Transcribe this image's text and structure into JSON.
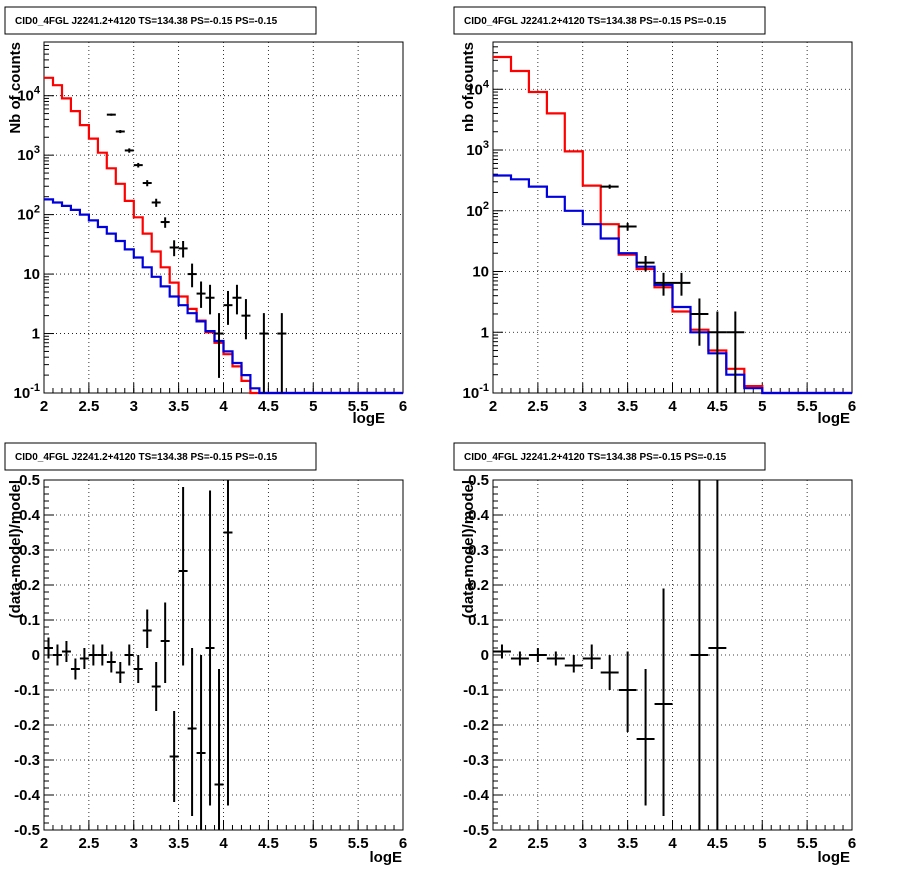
{
  "chart_data": [
    {
      "type": "line",
      "title": "CID0_4FGL J2241.2+4120 TS=134.38 PS=-0.15 PS=-0.15",
      "xlabel": "logE",
      "ylabel": "Nb of counts",
      "xlim": [
        2,
        6
      ],
      "ylim": [
        0.1,
        80000
      ],
      "log_y": true,
      "grid": true,
      "x_ticks": [
        "2",
        "2.5",
        "3",
        "3.5",
        "4",
        "4.5",
        "5",
        "5.5",
        "6"
      ],
      "y_ticks": [
        "10^-1",
        "1",
        "10",
        "10^2",
        "10^3",
        "10^4"
      ],
      "bin_edges_start": 2.0,
      "bin_width": 0.1,
      "series": [
        {
          "kind": "step",
          "color": "#ff0000",
          "values": [
            20000,
            15000,
            9000,
            5500,
            3200,
            1900,
            1100,
            600,
            330,
            170,
            90,
            48,
            24,
            13,
            7.2,
            4.2,
            2.6,
            1.65,
            1.05,
            0.7,
            0.45,
            0.28,
            0.16,
            0.1,
            0.1,
            0.1,
            0.1,
            0.1,
            0.1,
            0.1,
            0.1,
            0.1,
            0.1,
            0.1,
            0.1,
            0.1,
            0.1,
            0.1,
            0.1,
            0.1
          ]
        },
        {
          "kind": "step",
          "color": "#0000dd",
          "values": [
            180,
            160,
            140,
            120,
            100,
            80,
            62,
            48,
            36,
            26,
            19,
            13,
            9,
            6.2,
            4.2,
            3.0,
            2.2,
            1.6,
            1.1,
            0.75,
            0.5,
            0.32,
            0.2,
            0.12,
            0.1,
            0.1,
            0.1,
            0.1,
            0.1,
            0.1,
            0.1,
            0.1,
            0.1,
            0.1,
            0.1,
            0.1,
            0.1,
            0.1,
            0.1,
            0.1
          ]
        },
        {
          "kind": "errorbar",
          "color": "#000000",
          "points": [
            {
              "x": 2.75,
              "y": 4800,
              "lo": 4600,
              "hi": 5000
            },
            {
              "x": 2.85,
              "y": 2500,
              "lo": 2350,
              "hi": 2650
            },
            {
              "x": 2.95,
              "y": 1200,
              "lo": 1100,
              "hi": 1300
            },
            {
              "x": 3.05,
              "y": 680,
              "lo": 620,
              "hi": 740
            },
            {
              "x": 3.15,
              "y": 340,
              "lo": 300,
              "hi": 380
            },
            {
              "x": 3.25,
              "y": 160,
              "lo": 135,
              "hi": 185
            },
            {
              "x": 3.35,
              "y": 75,
              "lo": 60,
              "hi": 90
            },
            {
              "x": 3.45,
              "y": 28,
              "lo": 20,
              "hi": 37
            },
            {
              "x": 3.55,
              "y": 27,
              "lo": 19,
              "hi": 36
            },
            {
              "x": 3.65,
              "y": 10,
              "lo": 6,
              "hi": 15
            },
            {
              "x": 3.75,
              "y": 4.7,
              "lo": 2.7,
              "hi": 7.5
            },
            {
              "x": 3.85,
              "y": 4.0,
              "lo": 2.1,
              "hi": 6.6
            },
            {
              "x": 3.95,
              "y": 1.0,
              "lo": 0.18,
              "hi": 2.2
            },
            {
              "x": 4.05,
              "y": 3.0,
              "lo": 1.4,
              "hi": 5.2
            },
            {
              "x": 4.15,
              "y": 4.0,
              "lo": 2.1,
              "hi": 6.6
            },
            {
              "x": 4.25,
              "y": 2.0,
              "lo": 0.8,
              "hi": 3.8
            },
            {
              "x": 4.45,
              "y": 1.0,
              "lo": 0.1,
              "hi": 2.2
            },
            {
              "x": 4.65,
              "y": 1.0,
              "lo": 0.1,
              "hi": 2.2
            }
          ]
        }
      ]
    },
    {
      "type": "line",
      "title": "CID0_4FGL J2241.2+4120 TS=134.38 PS=-0.15 PS=-0.15",
      "xlabel": "logE",
      "ylabel": "nb of counts",
      "xlim": [
        2,
        6
      ],
      "ylim": [
        0.1,
        60000
      ],
      "log_y": true,
      "grid": true,
      "x_ticks": [
        "2",
        "2.5",
        "3",
        "3.5",
        "4",
        "4.5",
        "5",
        "5.5",
        "6"
      ],
      "y_ticks": [
        "10^-1",
        "1",
        "10",
        "10^2",
        "10^3",
        "10^4"
      ],
      "bin_edges_start": 2.0,
      "bin_width": 0.2,
      "series": [
        {
          "kind": "step",
          "color": "#ff0000",
          "values": [
            34000,
            20000,
            9000,
            4000,
            950,
            260,
            60,
            19,
            11,
            5.5,
            2.2,
            1.1,
            0.5,
            0.25,
            0.13,
            0.1,
            0.1,
            0.1,
            0.1,
            0.1
          ]
        },
        {
          "kind": "step",
          "color": "#0000dd",
          "values": [
            380,
            330,
            250,
            170,
            100,
            60,
            35,
            20,
            12,
            6,
            2.6,
            1.0,
            0.45,
            0.2,
            0.12,
            0.1,
            0.1,
            0.1,
            0.1,
            0.1
          ]
        },
        {
          "kind": "errorbar",
          "color": "#000000",
          "points": [
            {
              "x": 3.3,
              "y": 250,
              "lo": 230,
              "hi": 270
            },
            {
              "x": 3.5,
              "y": 55,
              "lo": 47,
              "hi": 63
            },
            {
              "x": 3.7,
              "y": 14,
              "lo": 10,
              "hi": 18
            },
            {
              "x": 3.9,
              "y": 6.5,
              "lo": 4,
              "hi": 9.5
            },
            {
              "x": 4.1,
              "y": 6.5,
              "lo": 4,
              "hi": 9.5
            },
            {
              "x": 4.3,
              "y": 2.0,
              "lo": 0.6,
              "hi": 3.6
            },
            {
              "x": 4.5,
              "y": 1.0,
              "lo": 0.1,
              "hi": 2.2
            },
            {
              "x": 4.7,
              "y": 1.0,
              "lo": 0.1,
              "hi": 2.2
            }
          ]
        }
      ]
    },
    {
      "type": "scatter",
      "title": "CID0_4FGL J2241.2+4120 TS=134.38 PS=-0.15 PS=-0.15",
      "xlabel": "logE",
      "ylabel": "(data-model)/model",
      "xlim": [
        2,
        6
      ],
      "ylim": [
        -0.5,
        0.5
      ],
      "grid": true,
      "x_ticks": [
        "2",
        "2.5",
        "3",
        "3.5",
        "4",
        "4.5",
        "5",
        "5.5",
        "6"
      ],
      "y_ticks": [
        "-0.5",
        "-0.4",
        "-0.3",
        "-0.2",
        "-0.1",
        "0",
        "0.1",
        "0.2",
        "0.3",
        "0.4",
        "0.5"
      ],
      "bin_width": 0.1,
      "series": [
        {
          "kind": "errorbar",
          "color": "#000000",
          "points": [
            {
              "x": 2.05,
              "y": 0.02,
              "lo": -0.01,
              "hi": 0.05
            },
            {
              "x": 2.15,
              "y": 0.0,
              "lo": -0.03,
              "hi": 0.03
            },
            {
              "x": 2.25,
              "y": 0.01,
              "lo": -0.02,
              "hi": 0.04
            },
            {
              "x": 2.35,
              "y": -0.04,
              "lo": -0.07,
              "hi": -0.01
            },
            {
              "x": 2.45,
              "y": -0.01,
              "lo": -0.04,
              "hi": 0.02
            },
            {
              "x": 2.55,
              "y": 0.0,
              "lo": -0.03,
              "hi": 0.03
            },
            {
              "x": 2.65,
              "y": 0.0,
              "lo": -0.03,
              "hi": 0.03
            },
            {
              "x": 2.75,
              "y": -0.02,
              "lo": -0.05,
              "hi": 0.01
            },
            {
              "x": 2.85,
              "y": -0.05,
              "lo": -0.08,
              "hi": -0.02
            },
            {
              "x": 2.95,
              "y": 0.0,
              "lo": -0.03,
              "hi": 0.03
            },
            {
              "x": 3.05,
              "y": -0.04,
              "lo": -0.08,
              "hi": 0.0
            },
            {
              "x": 3.15,
              "y": 0.07,
              "lo": 0.02,
              "hi": 0.13
            },
            {
              "x": 3.25,
              "y": -0.09,
              "lo": -0.16,
              "hi": -0.02
            },
            {
              "x": 3.35,
              "y": 0.04,
              "lo": -0.08,
              "hi": 0.15
            },
            {
              "x": 3.45,
              "y": -0.29,
              "lo": -0.42,
              "hi": -0.16
            },
            {
              "x": 3.55,
              "y": 0.24,
              "lo": -0.03,
              "hi": 0.48
            },
            {
              "x": 3.65,
              "y": -0.21,
              "lo": -0.46,
              "hi": 0.02
            },
            {
              "x": 3.75,
              "y": -0.28,
              "lo": -0.5,
              "hi": 0.0
            },
            {
              "x": 3.85,
              "y": 0.02,
              "lo": -0.43,
              "hi": 0.47
            },
            {
              "x": 3.95,
              "y": -0.37,
              "lo": -0.5,
              "hi": -0.04
            },
            {
              "x": 4.05,
              "y": 0.35,
              "lo": -0.43,
              "hi": 0.5
            }
          ]
        }
      ]
    },
    {
      "type": "scatter",
      "title": "CID0_4FGL J2241.2+4120 TS=134.38 PS=-0.15 PS=-0.15",
      "xlabel": "logE",
      "ylabel": "(data-model)/model",
      "xlim": [
        2,
        6
      ],
      "ylim": [
        -0.5,
        0.5
      ],
      "grid": true,
      "x_ticks": [
        "2",
        "2.5",
        "3",
        "3.5",
        "4",
        "4.5",
        "5",
        "5.5",
        "6"
      ],
      "y_ticks": [
        "-0.5",
        "-0.4",
        "-0.3",
        "-0.2",
        "-0.1",
        "0",
        "0.1",
        "0.2",
        "0.3",
        "0.4",
        "0.5"
      ],
      "bin_width": 0.2,
      "series": [
        {
          "kind": "errorbar",
          "color": "#000000",
          "points": [
            {
              "x": 2.1,
              "y": 0.01,
              "lo": -0.01,
              "hi": 0.03
            },
            {
              "x": 2.3,
              "y": -0.01,
              "lo": -0.03,
              "hi": 0.01
            },
            {
              "x": 2.5,
              "y": 0.0,
              "lo": -0.02,
              "hi": 0.02
            },
            {
              "x": 2.7,
              "y": -0.01,
              "lo": -0.03,
              "hi": 0.01
            },
            {
              "x": 2.9,
              "y": -0.03,
              "lo": -0.05,
              "hi": 0.0
            },
            {
              "x": 3.1,
              "y": -0.01,
              "lo": -0.04,
              "hi": 0.03
            },
            {
              "x": 3.3,
              "y": -0.05,
              "lo": -0.1,
              "hi": 0.0
            },
            {
              "x": 3.5,
              "y": -0.1,
              "lo": -0.22,
              "hi": 0.01
            },
            {
              "x": 3.7,
              "y": -0.24,
              "lo": -0.43,
              "hi": -0.04
            },
            {
              "x": 3.9,
              "y": -0.14,
              "lo": -0.46,
              "hi": 0.19
            },
            {
              "x": 4.3,
              "y": 0.0,
              "lo": -0.5,
              "hi": 0.5
            },
            {
              "x": 4.5,
              "y": 0.02,
              "lo": -0.5,
              "hi": 0.5
            }
          ]
        }
      ]
    }
  ]
}
